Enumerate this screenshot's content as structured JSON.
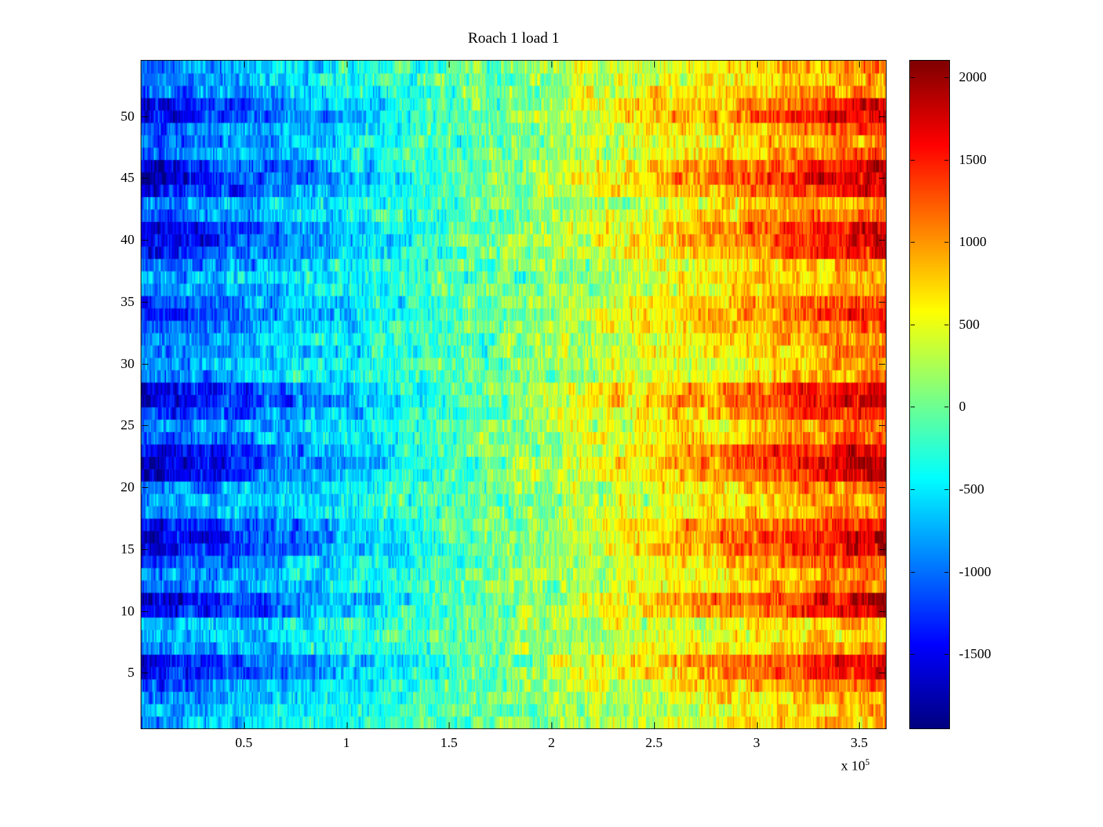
{
  "figure": {
    "title": "Roach 1 load 1",
    "x_exponent_prefix": "x 10",
    "x_exponent": "5"
  },
  "chart_data": {
    "type": "heatmap",
    "title": "Roach 1 load 1",
    "colormap": "jet",
    "clim": [
      -1950,
      2100
    ],
    "x_axis": {
      "min": 0,
      "max": 363000,
      "tick_values": [
        50000,
        100000,
        150000,
        200000,
        250000,
        300000,
        350000
      ],
      "tick_labels": [
        "0.5",
        "1",
        "1.5",
        "2",
        "2.5",
        "3",
        "3.5"
      ],
      "scale_label": "x 10^5"
    },
    "y_axis": {
      "min": 0.5,
      "max": 54.5,
      "tick_values": [
        5,
        10,
        15,
        20,
        25,
        30,
        35,
        40,
        45,
        50
      ],
      "tick_labels": [
        "5",
        "10",
        "15",
        "20",
        "25",
        "30",
        "35",
        "40",
        "45",
        "50"
      ]
    },
    "colorbar": {
      "tick_values": [
        2000,
        1500,
        1000,
        500,
        0,
        -500,
        -1000,
        -1500
      ],
      "tick_labels": [
        "2000",
        "1500",
        "1000",
        "500",
        "0",
        "-500",
        "-1000",
        "-1500"
      ]
    },
    "n_rows": 54,
    "n_cols": 540,
    "row_amplitudes": [
      1000,
      900,
      1100,
      1400,
      1800,
      1900,
      1200,
      900,
      1000,
      1900,
      2000,
      1300,
      1200,
      1500,
      1900,
      2000,
      1800,
      1200,
      1100,
      1300,
      1900,
      2100,
      2000,
      1400,
      1200,
      1700,
      2000,
      1900,
      1100,
      1000,
      1200,
      1100,
      1400,
      1600,
      1500,
      1100,
      1000,
      1200,
      1700,
      1900,
      1800,
      1300,
      1100,
      1800,
      2000,
      1900,
      1300,
      1200,
      1400,
      1900,
      1800,
      1300,
      1100,
      1200
    ],
    "gradient_start": -0.85,
    "gradient_end": 0.95,
    "noise_amplitude": 330,
    "seed": 7
  }
}
